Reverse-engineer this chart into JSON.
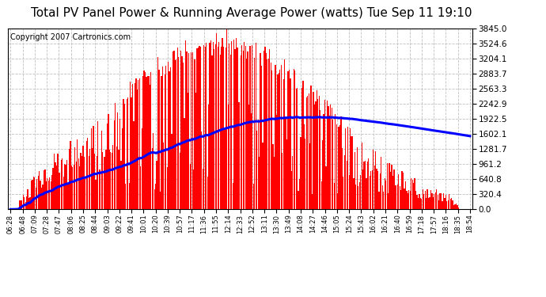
{
  "title": "Total PV Panel Power & Running Average Power (watts) Tue Sep 11 19:10",
  "copyright": "Copyright 2007 Cartronics.com",
  "y_max": 3845.0,
  "y_min": 0.0,
  "y_ticks": [
    0.0,
    320.4,
    640.8,
    961.2,
    1281.7,
    1602.1,
    1922.5,
    2242.9,
    2563.3,
    2883.7,
    3204.1,
    3524.6,
    3845.0
  ],
  "x_labels": [
    "06:28",
    "06:48",
    "07:09",
    "07:28",
    "07:47",
    "08:06",
    "08:25",
    "08:44",
    "09:03",
    "09:22",
    "09:41",
    "10:01",
    "10:20",
    "10:39",
    "10:57",
    "11:17",
    "11:36",
    "11:55",
    "12:14",
    "12:33",
    "12:52",
    "13:11",
    "13:30",
    "13:49",
    "14:08",
    "14:27",
    "14:46",
    "15:05",
    "15:24",
    "15:43",
    "16:02",
    "16:21",
    "16:40",
    "16:59",
    "17:18",
    "17:57",
    "18:16",
    "18:35",
    "18:54"
  ],
  "bar_color": "#FF0000",
  "line_color": "#0000FF",
  "background_color": "#FFFFFF",
  "grid_color": "#C0C0C0",
  "title_fontsize": 11,
  "copyright_fontsize": 7,
  "n_points": 400
}
